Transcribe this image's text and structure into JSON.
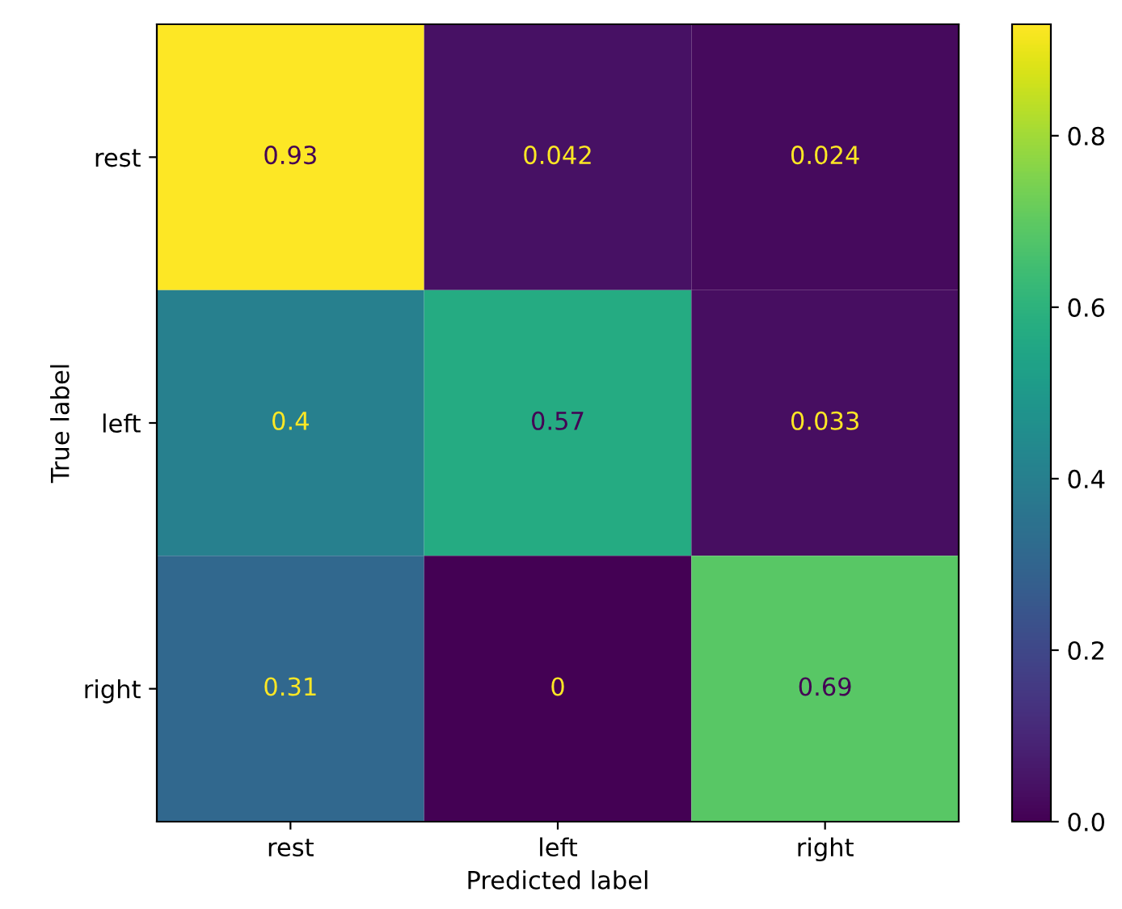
{
  "chart_data": {
    "type": "heatmap",
    "xlabel": "Predicted label",
    "ylabel": "True label",
    "categories": [
      "rest",
      "left",
      "right"
    ],
    "y_categories": [
      "rest",
      "left",
      "right"
    ],
    "cells": [
      [
        0.93,
        0.042,
        0.024
      ],
      [
        0.4,
        0.57,
        0.033
      ],
      [
        0.31,
        0,
        0.69
      ]
    ],
    "data_labels": true,
    "clim": [
      0,
      0.93
    ],
    "cticks": [
      {
        "value": 0,
        "label": "0.0"
      },
      {
        "value": 0.2,
        "label": "0.2"
      },
      {
        "value": 0.4,
        "label": "0.4"
      },
      {
        "value": 0.6,
        "label": "0.6"
      },
      {
        "value": 0.8,
        "label": "0.8"
      }
    ]
  }
}
